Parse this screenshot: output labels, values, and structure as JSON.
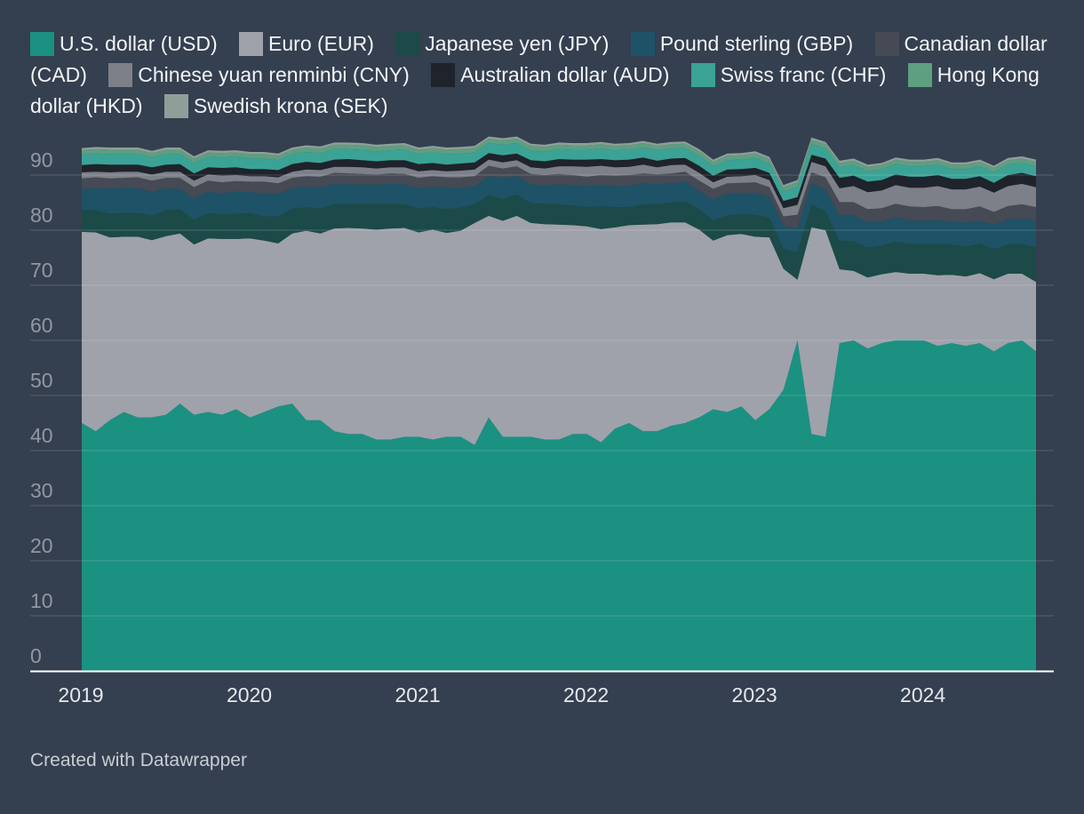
{
  "legend": {
    "items": [
      {
        "label": "U.S. dollar (USD)",
        "color": "#1b9181"
      },
      {
        "label": "Euro (EUR)",
        "color": "#9fa2ab"
      },
      {
        "label": "Japanese yen (JPY)",
        "color": "#1b4a48"
      },
      {
        "label": "Pound sterling (GBP)",
        "color": "#1e5266"
      },
      {
        "label": "Canadian dollar (CAD)",
        "color": "#454a54"
      },
      {
        "label": "Chinese yuan renminbi (CNY)",
        "color": "#7d8089"
      },
      {
        "label": "Australian dollar (AUD)",
        "color": "#1f232b"
      },
      {
        "label": "Swiss franc (CHF)",
        "color": "#3aa396"
      },
      {
        "label": "Hong Kong dollar (HKD)",
        "color": "#5e9e81"
      },
      {
        "label": "Swedish krona (SEK)",
        "color": "#909e9a"
      }
    ]
  },
  "credit": "Created with Datawrapper",
  "chart_data": {
    "type": "area",
    "stacked": true,
    "x": [
      "2019-01",
      "2019-02",
      "2019-03",
      "2019-04",
      "2019-05",
      "2019-06",
      "2019-07",
      "2019-08",
      "2019-09",
      "2019-10",
      "2019-11",
      "2019-12",
      "2020-01",
      "2020-02",
      "2020-03",
      "2020-04",
      "2020-05",
      "2020-06",
      "2020-07",
      "2020-08",
      "2020-09",
      "2020-10",
      "2020-11",
      "2020-12",
      "2021-01",
      "2021-02",
      "2021-03",
      "2021-04",
      "2021-05",
      "2021-06",
      "2021-07",
      "2021-08",
      "2021-09",
      "2021-10",
      "2021-11",
      "2021-12",
      "2022-01",
      "2022-02",
      "2022-03",
      "2022-04",
      "2022-05",
      "2022-06",
      "2022-07",
      "2022-08",
      "2022-09",
      "2022-10",
      "2022-11",
      "2022-12",
      "2023-01",
      "2023-02",
      "2023-03",
      "2023-04",
      "2023-05",
      "2023-06",
      "2023-07",
      "2023-08",
      "2023-09",
      "2023-10",
      "2023-11",
      "2023-12",
      "2024-01",
      "2024-02",
      "2024-03",
      "2024-04",
      "2024-05",
      "2024-06",
      "2024-07",
      "2024-08",
      "2024-09"
    ],
    "x_ticks": [
      "2019",
      "2020",
      "2021",
      "2022",
      "2023",
      "2024"
    ],
    "ylim": [
      0,
      95
    ],
    "y_ticks": [
      0,
      10,
      20,
      30,
      40,
      50,
      60,
      70,
      80,
      90
    ],
    "grid": true,
    "legend_position": "top",
    "series": [
      {
        "name": "U.S. dollar (USD)",
        "values": [
          45.0,
          43.5,
          45.5,
          47.0,
          46.0,
          46.0,
          46.5,
          48.5,
          46.5,
          47.0,
          46.5,
          47.5,
          46.0,
          47.0,
          48.0,
          48.5,
          45.5,
          45.5,
          43.5,
          43.0,
          43.0,
          42.0,
          42.0,
          42.5,
          42.5,
          42.0,
          42.5,
          42.5,
          41.0,
          46.0,
          42.5,
          42.5,
          42.5,
          42.0,
          42.0,
          43.0,
          43.0,
          41.5,
          44.0,
          45.0,
          43.5,
          43.5,
          44.5,
          45.0,
          46.0,
          47.5,
          47.0,
          48.0,
          45.5,
          47.5,
          51.0,
          60.0,
          43.0,
          42.5,
          59.5,
          60.0,
          58.5,
          59.5,
          60.0,
          60.0,
          60.0,
          59.0,
          59.5,
          59.0,
          59.5,
          58.0,
          59.5,
          60.0,
          58.0
        ]
      },
      {
        "name": "Euro (EUR)",
        "values": [
          34.7,
          36.1,
          33.2,
          31.8,
          32.8,
          32.2,
          32.4,
          30.9,
          30.9,
          31.5,
          31.9,
          30.9,
          32.5,
          31.1,
          29.6,
          30.9,
          34.4,
          33.9,
          36.8,
          37.4,
          37.3,
          38.1,
          38.3,
          37.9,
          37.1,
          38.1,
          37.0,
          37.4,
          40.3,
          36.6,
          39.2,
          40.1,
          38.8,
          39.1,
          39.0,
          37.9,
          37.7,
          38.7,
          36.5,
          35.9,
          37.5,
          37.6,
          36.9,
          36.4,
          34.1,
          30.6,
          32.1,
          31.3,
          33.3,
          31.2,
          22.0,
          11.0,
          37.5,
          37.5,
          13.4,
          12.6,
          12.9,
          12.5,
          12.4,
          12.1,
          12.1,
          12.8,
          12.4,
          12.6,
          12.7,
          13.1,
          12.6,
          12.1,
          12.6
        ]
      },
      {
        "name": "Japanese yen (JPY)",
        "values": [
          4.0,
          4.0,
          4.3,
          4.4,
          4.3,
          4.5,
          4.7,
          4.4,
          4.5,
          4.6,
          4.4,
          4.6,
          4.6,
          4.4,
          4.9,
          4.5,
          4.3,
          4.5,
          4.4,
          4.3,
          4.5,
          4.6,
          4.5,
          4.3,
          4.3,
          4.1,
          4.3,
          4.2,
          3.4,
          3.8,
          4.0,
          3.9,
          3.6,
          3.7,
          3.7,
          3.6,
          3.5,
          4.1,
          3.7,
          3.3,
          3.7,
          3.6,
          3.6,
          3.8,
          3.7,
          3.7,
          3.6,
          3.6,
          4.0,
          3.6,
          3.7,
          5.0,
          4.2,
          3.4,
          5.2,
          5.4,
          5.4,
          5.2,
          5.5,
          5.4,
          5.4,
          5.7,
          5.5,
          5.4,
          5.4,
          5.5,
          5.3,
          5.4,
          6.3
        ]
      },
      {
        "name": "Pound sterling (GBP)",
        "values": [
          3.8,
          4.1,
          4.5,
          4.5,
          4.5,
          4.3,
          4.0,
          3.7,
          3.9,
          3.9,
          3.9,
          4.0,
          3.8,
          4.2,
          4.1,
          3.7,
          3.7,
          3.8,
          3.7,
          3.6,
          3.5,
          3.6,
          3.6,
          3.6,
          3.7,
          3.7,
          3.9,
          3.6,
          3.3,
          3.4,
          3.7,
          3.4,
          3.4,
          3.4,
          3.6,
          3.7,
          3.8,
          3.9,
          3.8,
          3.8,
          3.8,
          3.6,
          3.5,
          3.6,
          3.3,
          3.8,
          3.9,
          3.8,
          4.0,
          3.7,
          4.1,
          4.4,
          3.9,
          4.0,
          4.6,
          4.7,
          4.6,
          4.4,
          4.5,
          4.3,
          4.2,
          4.3,
          4.1,
          4.4,
          4.1,
          4.4,
          4.5,
          4.6,
          4.9
        ]
      },
      {
        "name": "Canadian dollar (CAD)",
        "values": [
          1.9,
          1.9,
          1.9,
          1.8,
          2.0,
          2.0,
          1.9,
          2.0,
          2.0,
          2.0,
          2.0,
          1.9,
          1.9,
          2.1,
          1.9,
          1.9,
          1.9,
          2.0,
          2.0,
          2.0,
          1.9,
          1.8,
          1.9,
          1.9,
          1.9,
          1.9,
          1.9,
          1.9,
          1.8,
          1.9,
          1.8,
          1.7,
          1.9,
          1.8,
          1.9,
          1.8,
          1.7,
          1.8,
          1.9,
          2.0,
          1.8,
          1.8,
          1.8,
          1.8,
          1.9,
          1.9,
          1.9,
          1.9,
          1.9,
          1.8,
          1.7,
          2.4,
          1.9,
          2.2,
          2.4,
          2.4,
          2.4,
          2.4,
          2.4,
          2.5,
          2.5,
          2.6,
          2.3,
          2.4,
          2.6,
          2.3,
          2.5,
          2.6,
          2.4
        ]
      },
      {
        "name": "Chinese yuan renminbi (CNY)",
        "values": [
          1.1,
          1.0,
          1.1,
          1.1,
          1.0,
          1.1,
          1.1,
          1.1,
          1.2,
          1.1,
          1.2,
          1.1,
          1.0,
          1.0,
          1.1,
          1.1,
          1.2,
          1.2,
          1.1,
          1.2,
          1.2,
          1.1,
          1.1,
          1.2,
          1.2,
          1.1,
          1.1,
          1.2,
          1.2,
          1.1,
          1.1,
          1.1,
          1.2,
          1.2,
          1.4,
          1.6,
          1.8,
          1.7,
          1.5,
          1.5,
          1.6,
          1.3,
          1.5,
          1.3,
          1.4,
          1.2,
          1.2,
          1.2,
          1.3,
          1.3,
          1.5,
          1.8,
          1.9,
          2.0,
          2.5,
          2.9,
          3.1,
          3.2,
          3.4,
          3.4,
          3.5,
          3.6,
          3.6,
          3.6,
          3.6,
          3.5,
          3.6,
          3.7,
          3.6
        ]
      },
      {
        "name": "Australian dollar (AUD)",
        "values": [
          1.3,
          1.4,
          1.4,
          1.3,
          1.3,
          1.3,
          1.3,
          1.4,
          1.3,
          1.3,
          1.4,
          1.4,
          1.3,
          1.3,
          1.3,
          1.4,
          1.4,
          1.3,
          1.3,
          1.4,
          1.3,
          1.3,
          1.3,
          1.3,
          1.3,
          1.3,
          1.2,
          1.3,
          1.3,
          1.2,
          1.3,
          1.2,
          1.3,
          1.3,
          1.3,
          1.2,
          1.3,
          1.2,
          1.3,
          1.3,
          1.3,
          1.2,
          1.2,
          1.2,
          1.3,
          1.2,
          1.3,
          1.3,
          1.3,
          1.3,
          1.3,
          1.4,
          1.3,
          1.4,
          1.9,
          1.9,
          1.9,
          1.9,
          1.9,
          2.0,
          2.0,
          2.0,
          1.9,
          1.9,
          1.9,
          1.8,
          2.0,
          2.0,
          2.0
        ]
      },
      {
        "name": "Swiss franc (CHF)",
        "values": [
          1.9,
          1.9,
          1.9,
          1.9,
          1.9,
          1.8,
          1.9,
          1.8,
          1.9,
          1.9,
          1.9,
          1.9,
          1.9,
          1.9,
          1.8,
          1.8,
          1.8,
          1.8,
          1.9,
          1.8,
          1.9,
          1.8,
          1.8,
          1.9,
          1.8,
          1.9,
          1.9,
          1.8,
          1.8,
          1.8,
          1.9,
          1.9,
          1.8,
          1.8,
          1.8,
          1.8,
          1.8,
          1.9,
          1.8,
          1.8,
          1.8,
          1.9,
          1.8,
          1.8,
          1.8,
          1.7,
          1.7,
          1.7,
          1.8,
          1.7,
          1.7,
          1.9,
          1.9,
          1.8,
          1.9,
          1.9,
          1.9,
          1.9,
          1.9,
          1.9,
          1.9,
          1.9,
          1.8,
          1.8,
          1.8,
          1.9,
          1.9,
          1.8,
          1.8
        ]
      },
      {
        "name": "Hong Kong dollar (HKD)",
        "values": [
          0.8,
          0.8,
          0.8,
          0.8,
          0.8,
          0.8,
          0.8,
          0.8,
          0.8,
          0.8,
          0.8,
          0.8,
          0.8,
          0.8,
          0.8,
          0.8,
          0.8,
          0.8,
          0.8,
          0.8,
          0.8,
          0.8,
          0.8,
          0.8,
          0.8,
          0.8,
          0.8,
          0.8,
          0.8,
          0.8,
          0.8,
          0.8,
          0.8,
          0.8,
          0.8,
          0.8,
          0.8,
          0.8,
          0.8,
          0.8,
          0.8,
          0.8,
          0.8,
          0.8,
          0.8,
          0.8,
          0.8,
          0.8,
          0.8,
          0.8,
          0.8,
          0.8,
          0.8,
          0.8,
          0.8,
          0.8,
          0.8,
          0.8,
          0.8,
          0.8,
          0.8,
          0.8,
          0.8,
          0.8,
          0.8,
          0.8,
          0.8,
          0.8,
          0.8
        ]
      },
      {
        "name": "Swedish krona (SEK)",
        "values": [
          0.4,
          0.4,
          0.4,
          0.4,
          0.4,
          0.4,
          0.4,
          0.4,
          0.4,
          0.4,
          0.4,
          0.4,
          0.4,
          0.4,
          0.4,
          0.4,
          0.4,
          0.4,
          0.4,
          0.4,
          0.4,
          0.4,
          0.4,
          0.4,
          0.4,
          0.4,
          0.4,
          0.4,
          0.4,
          0.4,
          0.4,
          0.4,
          0.4,
          0.4,
          0.4,
          0.4,
          0.4,
          0.4,
          0.4,
          0.4,
          0.4,
          0.4,
          0.4,
          0.4,
          0.4,
          0.4,
          0.4,
          0.4,
          0.4,
          0.4,
          0.4,
          0.4,
          0.4,
          0.4,
          0.4,
          0.4,
          0.4,
          0.4,
          0.4,
          0.4,
          0.4,
          0.4,
          0.4,
          0.4,
          0.4,
          0.4,
          0.4,
          0.4,
          0.4
        ]
      }
    ]
  }
}
